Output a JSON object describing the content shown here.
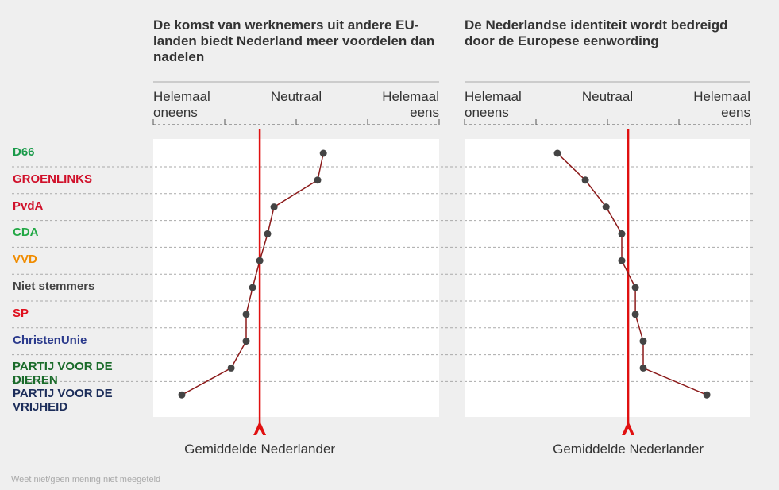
{
  "categories": [
    "D66",
    "GROENLINKS",
    "PvdA",
    "CDA",
    "VVD",
    "Niet stemmers",
    "SP",
    "ChristenUnie",
    "PARTIJ VOOR DE DIEREN",
    "PARTIJ VOOR DE VRIJHEID"
  ],
  "category_colors": [
    "#1a9a4a",
    "#d0102a",
    "#d0102a",
    "#22a845",
    "#f08c00",
    "#444444",
    "#e0101e",
    "#2b3a8c",
    "#1a6b2a",
    "#1c2d5a"
  ],
  "note": "Weet niet/geen mening niet meegeteld",
  "chart_data": [
    {
      "type": "line",
      "title": "De komst van werknemers uit andere EU-landen biedt Nederland meer voordelen dan nadelen",
      "xlim": [
        1,
        5
      ],
      "xticks": [
        {
          "value": 1,
          "label": "Helemaal oneens"
        },
        {
          "value": 3,
          "label": "Neutraal"
        },
        {
          "value": 5,
          "label": "Helemaal eens"
        }
      ],
      "minor_xticks": [
        2,
        4
      ],
      "values": [
        3.38,
        3.3,
        2.69,
        2.6,
        2.49,
        2.39,
        2.3,
        2.3,
        2.09,
        1.4
      ],
      "color": "#8b1a1a",
      "average": {
        "label": "Gemiddelde Nederlander",
        "value": 2.49,
        "color": "#e01010"
      }
    },
    {
      "type": "line",
      "title": "De Nederlandse identiteit wordt bedreigd door de Europese eenwording",
      "xlim": [
        1,
        5
      ],
      "xticks": [
        {
          "value": 1,
          "label": "Helemaal oneens"
        },
        {
          "value": 3,
          "label": "Neutraal"
        },
        {
          "value": 5,
          "label": "Helemaal eens"
        }
      ],
      "minor_xticks": [
        2,
        4
      ],
      "values": [
        2.3,
        2.69,
        2.98,
        3.2,
        3.2,
        3.39,
        3.39,
        3.5,
        3.5,
        4.39
      ],
      "color": "#8b1a1a",
      "average": {
        "label": "Gemiddelde Nederlander",
        "value": 3.29,
        "color": "#e01010"
      }
    }
  ]
}
